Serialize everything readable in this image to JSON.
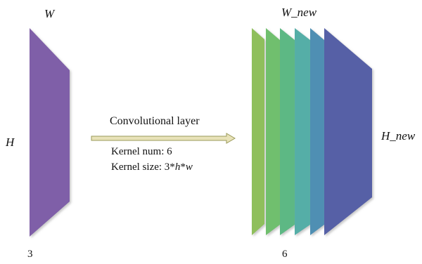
{
  "input": {
    "width_label": "W",
    "height_label": "H",
    "channels_label": "3",
    "color": "#7f5fa8"
  },
  "operation": {
    "title": "Convolutional layer",
    "kernel_num": "Kernel num: 6",
    "kernel_size_prefix": "Kernel size: 3*",
    "kernel_size_h": "h",
    "kernel_size_sep": "*",
    "kernel_size_w": "w",
    "arrow_color": "#e8e2b8"
  },
  "output": {
    "width_label": "W_new",
    "height_label": "H_new",
    "channels_label": "6",
    "map_colors": [
      "#8fbf5c",
      "#6fbf6e",
      "#5db884",
      "#55aea7",
      "#4f8fb3",
      "#5660a6"
    ]
  }
}
